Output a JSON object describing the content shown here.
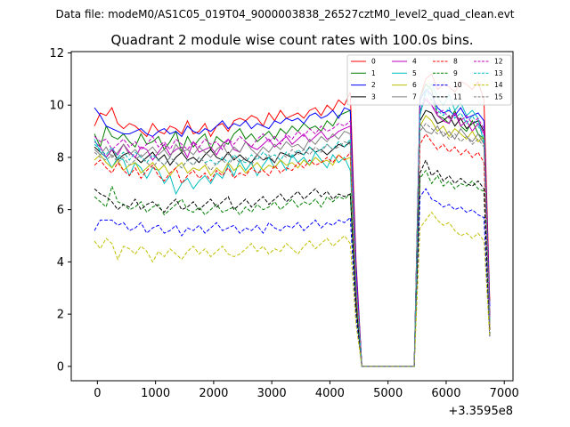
{
  "chart_data": {
    "type": "line",
    "suptitle": "Data file: modeM0/AS1C05_019T04_9000003838_26527cztM0_level2_quad_clean.evt",
    "title": "Quadrant 2 module wise count rates with 100.0s bins.",
    "xlabel": "",
    "ylabel": "",
    "x_offset_label": "+3.3595e8",
    "xlim": [
      -450,
      7150
    ],
    "ylim": [
      -0.55,
      12.05
    ],
    "xticks": [
      0,
      1000,
      2000,
      3000,
      4000,
      5000,
      6000,
      7000
    ],
    "xtick_labels": [
      "0",
      "1000",
      "2000",
      "3000",
      "4000",
      "5000",
      "6000",
      "7000"
    ],
    "yticks": [
      0,
      2,
      4,
      6,
      8,
      10,
      12
    ],
    "ytick_labels": [
      "0",
      "2",
      "4",
      "6",
      "8",
      "10",
      "12"
    ],
    "grid": false,
    "legend_position": "top-right",
    "x": [
      -50,
      50,
      150,
      250,
      350,
      450,
      550,
      650,
      750,
      850,
      950,
      1050,
      1150,
      1250,
      1350,
      1450,
      1550,
      1650,
      1750,
      1850,
      1950,
      2050,
      2150,
      2250,
      2350,
      2450,
      2550,
      2650,
      2750,
      2850,
      2950,
      3050,
      3150,
      3250,
      3350,
      3450,
      3550,
      3650,
      3750,
      3850,
      3950,
      4050,
      4150,
      4250,
      4350,
      4450,
      4550,
      5450,
      5550,
      5650,
      5750,
      5850,
      5950,
      6050,
      6150,
      6250,
      6350,
      6450,
      6550,
      6650,
      6750
    ],
    "series": [
      {
        "name": "0",
        "color": "#ff0000",
        "dashed": false,
        "values": [
          9.2,
          9.7,
          9.6,
          9.9,
          9.3,
          9.1,
          9.3,
          9.2,
          9.0,
          8.8,
          9.3,
          9.0,
          8.9,
          9.2,
          9.1,
          8.9,
          9.4,
          8.9,
          9.0,
          9.3,
          8.8,
          9.2,
          9.3,
          9.0,
          9.4,
          9.5,
          9.4,
          9.6,
          9.5,
          9.2,
          9.7,
          9.4,
          9.8,
          9.5,
          9.6,
          9.7,
          9.5,
          9.8,
          9.9,
          9.6,
          10.0,
          9.8,
          10.2,
          10.0,
          10.5,
          4.0,
          0.0,
          0.0,
          10.3,
          11.0,
          11.2,
          10.6,
          10.8,
          10.7,
          10.5,
          10.9,
          10.8,
          10.6,
          10.9,
          10.2,
          2.5
        ]
      },
      {
        "name": "1",
        "color": "#008000",
        "dashed": false,
        "values": [
          8.9,
          8.4,
          9.2,
          8.8,
          8.7,
          8.9,
          8.6,
          8.4,
          8.9,
          8.5,
          8.6,
          8.8,
          8.3,
          8.6,
          9.0,
          8.2,
          8.8,
          8.4,
          8.7,
          8.9,
          8.3,
          8.8,
          8.6,
          8.5,
          8.9,
          9.1,
          8.7,
          8.9,
          8.6,
          8.8,
          9.0,
          8.7,
          9.1,
          8.9,
          9.2,
          9.0,
          9.3,
          9.1,
          9.2,
          9.0,
          9.4,
          9.2,
          9.6,
          9.7,
          9.8,
          3.6,
          0.0,
          0.0,
          10.3,
          10.8,
          10.6,
          9.6,
          9.5,
          9.3,
          9.8,
          9.2,
          9.0,
          9.4,
          8.9,
          8.7,
          2.0
        ]
      },
      {
        "name": "2",
        "color": "#0000ff",
        "dashed": false,
        "values": [
          9.9,
          9.6,
          9.2,
          9.1,
          9.0,
          8.9,
          8.9,
          9.0,
          9.1,
          8.9,
          8.8,
          9.0,
          9.1,
          8.9,
          9.0,
          8.8,
          9.2,
          9.0,
          8.9,
          9.1,
          9.0,
          9.2,
          9.4,
          9.1,
          9.3,
          9.2,
          9.4,
          9.1,
          9.3,
          9.2,
          9.1,
          9.4,
          9.3,
          9.5,
          9.4,
          9.5,
          9.3,
          9.6,
          9.7,
          9.5,
          9.6,
          9.8,
          9.5,
          9.9,
          9.8,
          3.8,
          0.0,
          0.0,
          10.2,
          10.6,
          10.4,
          9.9,
          9.7,
          9.8,
          9.6,
          9.9,
          9.5,
          9.6,
          9.7,
          9.4,
          2.3
        ]
      },
      {
        "name": "3",
        "color": "#000000",
        "dashed": false,
        "values": [
          8.4,
          8.2,
          8.0,
          8.3,
          7.9,
          8.1,
          8.2,
          8.0,
          7.8,
          8.0,
          8.2,
          7.9,
          8.1,
          7.7,
          8.0,
          8.2,
          7.9,
          8.0,
          7.8,
          8.1,
          8.3,
          8.0,
          7.9,
          8.2,
          7.9,
          8.1,
          7.9,
          7.8,
          8.1,
          7.9,
          8.0,
          7.8,
          8.2,
          8.1,
          8.0,
          8.2,
          8.1,
          8.4,
          8.2,
          8.3,
          8.1,
          8.3,
          8.5,
          8.4,
          8.6,
          3.0,
          0.0,
          0.0,
          9.4,
          9.8,
          9.7,
          9.3,
          9.4,
          9.6,
          9.2,
          9.5,
          9.1,
          9.3,
          9.4,
          9.0,
          1.8
        ]
      },
      {
        "name": "4",
        "color": "#bf00bf",
        "dashed": false,
        "values": [
          8.6,
          8.4,
          8.0,
          8.3,
          8.1,
          8.5,
          8.2,
          8.0,
          8.4,
          8.3,
          7.9,
          8.2,
          8.5,
          8.1,
          8.3,
          8.4,
          8.0,
          8.6,
          8.2,
          8.3,
          8.4,
          8.1,
          8.5,
          8.7,
          8.3,
          8.2,
          8.6,
          8.4,
          8.3,
          8.5,
          8.7,
          8.4,
          8.6,
          8.8,
          8.5,
          8.7,
          8.9,
          8.6,
          8.8,
          9.0,
          8.7,
          8.8,
          9.0,
          9.1,
          9.2,
          3.4,
          0.0,
          0.0,
          9.8,
          10.2,
          10.0,
          9.6,
          9.4,
          9.3,
          9.7,
          9.2,
          9.4,
          9.0,
          9.3,
          8.9,
          1.9
        ]
      },
      {
        "name": "5",
        "color": "#00bfbf",
        "dashed": false,
        "values": [
          8.7,
          8.2,
          8.0,
          7.6,
          8.0,
          7.9,
          7.3,
          7.8,
          7.6,
          7.2,
          7.6,
          7.5,
          7.0,
          7.3,
          6.6,
          7.0,
          7.2,
          6.8,
          7.1,
          7.3,
          7.0,
          7.4,
          7.2,
          7.7,
          7.3,
          7.9,
          7.5,
          7.8,
          7.3,
          7.7,
          8.0,
          7.6,
          7.9,
          7.5,
          8.1,
          7.8,
          8.0,
          7.7,
          8.2,
          7.9,
          7.6,
          8.1,
          7.8,
          8.0,
          7.5,
          2.5,
          0.0,
          0.0,
          9.6,
          10.5,
          10.8,
          10.3,
          10.0,
          10.4,
          9.8,
          10.1,
          9.6,
          9.8,
          9.5,
          8.5,
          1.6
        ]
      },
      {
        "name": "6",
        "color": "#bfbf00",
        "dashed": false,
        "values": [
          7.9,
          8.1,
          7.8,
          7.6,
          7.9,
          7.5,
          7.7,
          7.8,
          7.4,
          7.6,
          7.8,
          7.5,
          7.7,
          7.3,
          7.6,
          7.8,
          7.4,
          7.6,
          7.5,
          7.7,
          7.3,
          7.6,
          7.4,
          7.8,
          7.5,
          7.7,
          7.4,
          7.6,
          7.8,
          7.5,
          7.7,
          7.6,
          7.9,
          7.7,
          7.8,
          7.6,
          7.9,
          7.7,
          8.0,
          7.8,
          7.9,
          7.7,
          8.1,
          7.9,
          8.0,
          2.8,
          0.0,
          0.0,
          9.2,
          9.6,
          9.4,
          9.0,
          9.2,
          8.8,
          9.1,
          8.9,
          8.7,
          9.0,
          8.6,
          8.8,
          1.5
        ]
      },
      {
        "name": "7",
        "color": "#808080",
        "dashed": false,
        "values": [
          8.3,
          8.1,
          8.4,
          8.0,
          8.2,
          8.5,
          8.1,
          8.3,
          8.0,
          8.2,
          8.4,
          8.1,
          8.3,
          8.0,
          8.5,
          8.2,
          8.3,
          8.1,
          8.4,
          8.2,
          8.0,
          8.3,
          8.5,
          8.1,
          8.4,
          8.2,
          8.6,
          8.3,
          8.1,
          8.4,
          8.2,
          8.5,
          8.3,
          8.6,
          8.4,
          8.5,
          8.3,
          8.7,
          8.5,
          8.8,
          8.6,
          8.9,
          8.7,
          9.0,
          8.9,
          3.2,
          0.0,
          0.0,
          9.3,
          9.0,
          8.9,
          9.2,
          8.8,
          9.0,
          8.7,
          9.1,
          8.8,
          8.6,
          8.9,
          8.5,
          1.7
        ]
      },
      {
        "name": "8",
        "color": "#ff0000",
        "dashed": true,
        "values": [
          7.7,
          7.9,
          7.6,
          7.4,
          7.8,
          7.5,
          7.3,
          7.6,
          7.2,
          7.5,
          7.7,
          7.3,
          7.1,
          7.4,
          7.6,
          7.0,
          7.3,
          7.5,
          7.2,
          7.4,
          7.1,
          7.5,
          7.3,
          7.6,
          7.2,
          7.4,
          7.3,
          7.6,
          7.4,
          7.5,
          7.3,
          7.7,
          7.4,
          7.6,
          7.5,
          7.8,
          7.6,
          7.9,
          7.7,
          7.8,
          8.0,
          7.8,
          8.1,
          7.9,
          8.2,
          2.6,
          0.0,
          0.0,
          8.5,
          8.9,
          8.6,
          8.3,
          8.5,
          8.2,
          8.4,
          8.1,
          8.3,
          8.0,
          8.2,
          7.8,
          1.4
        ]
      },
      {
        "name": "9",
        "color": "#008000",
        "dashed": true,
        "values": [
          6.5,
          6.3,
          6.1,
          6.9,
          6.3,
          6.2,
          6.0,
          6.1,
          6.3,
          5.9,
          6.1,
          6.2,
          5.8,
          6.0,
          6.2,
          6.4,
          6.0,
          5.9,
          6.1,
          5.8,
          6.0,
          6.2,
          5.9,
          6.0,
          6.1,
          5.8,
          6.1,
          5.9,
          6.2,
          6.0,
          6.1,
          6.3,
          6.0,
          6.2,
          6.4,
          6.1,
          6.3,
          6.2,
          6.4,
          6.1,
          6.5,
          6.3,
          6.5,
          6.4,
          6.6,
          2.2,
          0.0,
          0.0,
          7.2,
          7.5,
          7.0,
          7.3,
          6.9,
          7.1,
          6.8,
          7.0,
          6.9,
          7.1,
          6.8,
          6.7,
          1.2
        ]
      },
      {
        "name": "10",
        "color": "#0000ff",
        "dashed": true,
        "values": [
          5.2,
          5.6,
          5.6,
          5.6,
          5.4,
          5.5,
          5.2,
          5.3,
          5.5,
          5.1,
          5.3,
          5.4,
          5.1,
          5.2,
          5.4,
          5.0,
          5.3,
          5.2,
          5.4,
          5.1,
          5.3,
          5.5,
          5.2,
          5.3,
          5.4,
          5.1,
          5.3,
          5.2,
          5.4,
          5.1,
          5.5,
          5.3,
          5.2,
          5.4,
          5.3,
          5.5,
          5.2,
          5.4,
          5.6,
          5.3,
          5.5,
          5.4,
          5.6,
          5.5,
          5.7,
          1.9,
          0.0,
          0.0,
          6.5,
          6.8,
          6.4,
          6.3,
          6.1,
          6.2,
          6.0,
          6.1,
          5.9,
          6.0,
          5.8,
          5.7,
          1.1
        ]
      },
      {
        "name": "11",
        "color": "#000000",
        "dashed": true,
        "values": [
          6.8,
          6.6,
          6.5,
          6.3,
          6.0,
          6.2,
          6.1,
          6.4,
          6.0,
          6.2,
          6.3,
          6.1,
          5.9,
          6.2,
          6.4,
          6.0,
          6.1,
          6.3,
          6.0,
          6.2,
          6.4,
          6.1,
          6.3,
          6.5,
          6.0,
          6.2,
          6.4,
          6.1,
          6.3,
          6.5,
          6.2,
          6.4,
          6.6,
          6.3,
          6.5,
          6.7,
          6.4,
          6.6,
          6.8,
          6.5,
          6.7,
          6.4,
          6.6,
          6.5,
          6.6,
          2.3,
          0.0,
          0.0,
          7.4,
          7.9,
          7.3,
          7.5,
          7.1,
          7.3,
          7.0,
          7.2,
          7.0,
          6.9,
          7.1,
          6.8,
          1.3
        ]
      },
      {
        "name": "12",
        "color": "#bf00bf",
        "dashed": true,
        "values": [
          8.8,
          8.6,
          8.7,
          8.3,
          8.5,
          8.7,
          8.4,
          8.6,
          8.3,
          8.5,
          8.8,
          8.4,
          8.6,
          8.3,
          8.7,
          8.5,
          8.3,
          8.6,
          8.4,
          8.7,
          8.5,
          8.6,
          8.3,
          8.7,
          8.5,
          8.8,
          8.6,
          8.4,
          8.7,
          8.9,
          8.6,
          8.8,
          8.5,
          8.9,
          8.7,
          9.0,
          8.8,
          9.1,
          8.9,
          9.2,
          9.0,
          9.1,
          9.3,
          9.2,
          9.4,
          3.5,
          0.0,
          0.0,
          9.9,
          10.3,
          10.0,
          9.7,
          9.8,
          9.5,
          9.7,
          9.4,
          9.6,
          9.3,
          9.5,
          9.1,
          1.9
        ]
      },
      {
        "name": "13",
        "color": "#00bfbf",
        "dashed": true,
        "values": [
          8.5,
          8.3,
          8.1,
          8.4,
          8.0,
          8.2,
          7.9,
          8.2,
          8.0,
          7.8,
          8.1,
          7.9,
          7.7,
          8.0,
          7.8,
          7.6,
          7.9,
          7.7,
          8.0,
          7.8,
          7.9,
          7.7,
          8.0,
          7.8,
          8.1,
          7.9,
          7.8,
          8.1,
          7.9,
          8.2,
          8.0,
          8.1,
          7.9,
          8.2,
          8.0,
          8.3,
          8.1,
          8.4,
          8.2,
          8.3,
          8.5,
          8.3,
          8.6,
          8.4,
          8.7,
          3.1,
          0.0,
          0.0,
          9.7,
          10.6,
          10.2,
          9.8,
          9.6,
          9.9,
          9.5,
          9.7,
          9.3,
          9.6,
          9.2,
          8.8,
          1.7
        ]
      },
      {
        "name": "14",
        "color": "#bfbf00",
        "dashed": true,
        "values": [
          4.8,
          4.5,
          4.9,
          4.7,
          4.1,
          4.6,
          4.5,
          4.3,
          4.6,
          4.4,
          4.0,
          4.4,
          4.2,
          4.5,
          4.3,
          4.1,
          4.4,
          4.6,
          4.3,
          4.5,
          4.2,
          4.4,
          4.6,
          4.3,
          4.2,
          4.3,
          4.5,
          4.7,
          4.4,
          4.6,
          4.3,
          4.5,
          4.4,
          4.7,
          4.5,
          4.3,
          4.6,
          4.8,
          4.5,
          4.7,
          4.9,
          4.6,
          4.8,
          5.0,
          4.7,
          1.6,
          0.0,
          0.0,
          5.3,
          5.6,
          5.9,
          5.6,
          5.4,
          5.5,
          5.2,
          5.0,
          5.1,
          4.9,
          5.1,
          4.8,
          1.1
        ]
      },
      {
        "name": "15",
        "color": "#808080",
        "dashed": true,
        "values": [
          8.2,
          8.0,
          7.9,
          8.1,
          7.8,
          8.0,
          7.7,
          7.9,
          8.1,
          7.8,
          7.6,
          7.9,
          7.7,
          8.0,
          7.8,
          7.6,
          7.9,
          7.7,
          8.0,
          7.8,
          7.5,
          7.8,
          7.9,
          7.7,
          8.0,
          7.8,
          8.0,
          7.7,
          8.1,
          7.9,
          8.1,
          7.8,
          8.2,
          8.0,
          8.3,
          8.1,
          8.3,
          8.1,
          8.4,
          8.2,
          8.5,
          8.3,
          8.4,
          8.6,
          8.5,
          3.0,
          0.0,
          0.0,
          9.0,
          9.3,
          9.1,
          8.9,
          9.0,
          8.7,
          8.9,
          8.6,
          8.8,
          8.5,
          8.7,
          8.4,
          1.6
        ]
      }
    ]
  }
}
